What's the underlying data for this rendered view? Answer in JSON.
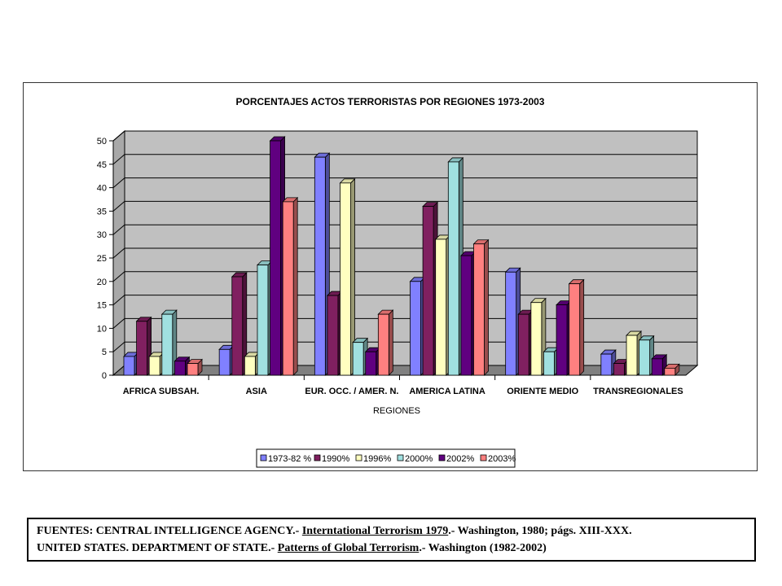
{
  "chart_data": {
    "type": "bar",
    "title": "PORCENTAJES ACTOS TERRORISTAS POR REGIONES 1973-2003",
    "xlabel": "REGIONES",
    "ylabel": "",
    "ylim": [
      0,
      50
    ],
    "yticks": [
      0,
      5,
      10,
      15,
      20,
      25,
      30,
      35,
      40,
      45,
      50
    ],
    "categories": [
      "AFRICA SUBSAH.",
      "ASIA",
      "EUR. OCC. / AMER. N.",
      "AMERICA LATINA",
      "ORIENTE MEDIO",
      "TRANSREGIONALES"
    ],
    "series": [
      {
        "name": "1973-82 %",
        "color": "#8080ff",
        "values": [
          4,
          5.5,
          46.5,
          20,
          22,
          4.5
        ]
      },
      {
        "name": "1990%",
        "color": "#802060",
        "values": [
          11.5,
          21,
          17,
          36,
          13,
          2.5
        ]
      },
      {
        "name": "1996%",
        "color": "#ffffc0",
        "values": [
          4,
          4,
          41,
          29,
          15.5,
          8.5
        ]
      },
      {
        "name": "2000%",
        "color": "#a0e0e0",
        "values": [
          13,
          23.5,
          7,
          45.5,
          5,
          7.5
        ]
      },
      {
        "name": "2002%",
        "color": "#600080",
        "values": [
          3,
          50,
          5,
          25.5,
          15,
          3.5
        ]
      },
      {
        "name": "2003%",
        "color": "#ff8080",
        "values": [
          2.5,
          37,
          13,
          28,
          19.5,
          1.5
        ]
      }
    ],
    "grid": true,
    "legend_position": "bottom"
  },
  "sources": {
    "line1_a": "FUENTES: CENTRAL INTELLIGENCE AGENCY.- ",
    "line1_u": "Interntational Terrorism 1979",
    "line1_b": ".- Washington, 1980; págs. XIII-XXX.",
    "line2_a": "UNITED STATES. DEPARTMENT OF STATE.- ",
    "line2_u": "Patterns of Global Terrorism",
    "line2_b": ".- Washington (1982-2002)"
  }
}
